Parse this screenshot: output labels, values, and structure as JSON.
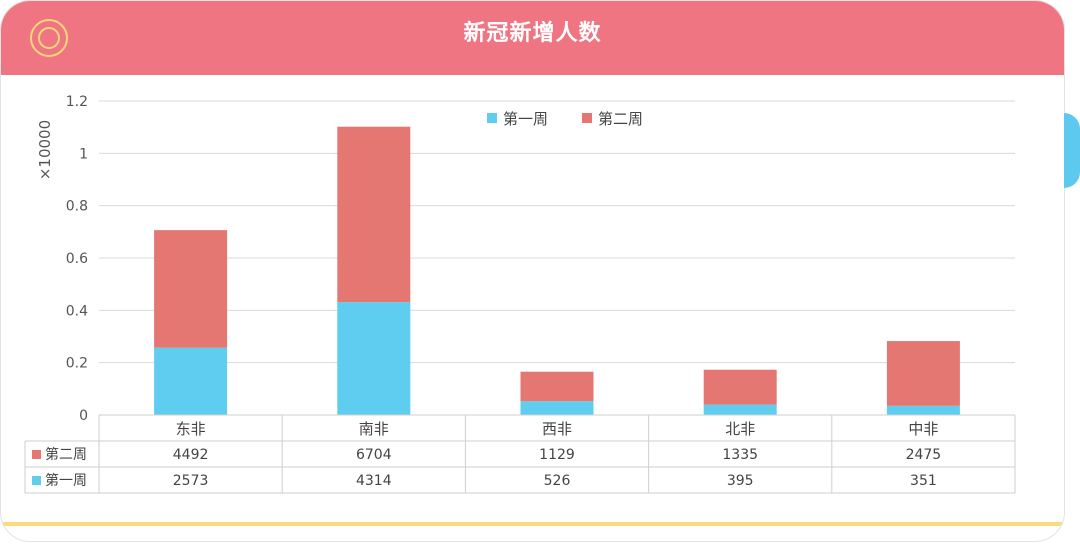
{
  "header": {
    "title": "新冠新增人数"
  },
  "chart_data": {
    "type": "bar",
    "stacked": true,
    "categories": [
      "东非",
      "南非",
      "西非",
      "北非",
      "中非"
    ],
    "series": [
      {
        "name": "第一周",
        "color": "#5ecdf0",
        "values": [
          2573,
          4314,
          526,
          395,
          351
        ]
      },
      {
        "name": "第二周",
        "color": "#e47772",
        "values": [
          4492,
          6704,
          1129,
          1335,
          2475
        ]
      }
    ],
    "ylabel": "×10000",
    "yticks": [
      "0",
      "0.2",
      "0.4",
      "0.6",
      "0.8",
      "1",
      "1.2"
    ],
    "ylim": [
      0,
      12000
    ],
    "grid": true,
    "legend_position": "top-center",
    "data_table": true
  }
}
